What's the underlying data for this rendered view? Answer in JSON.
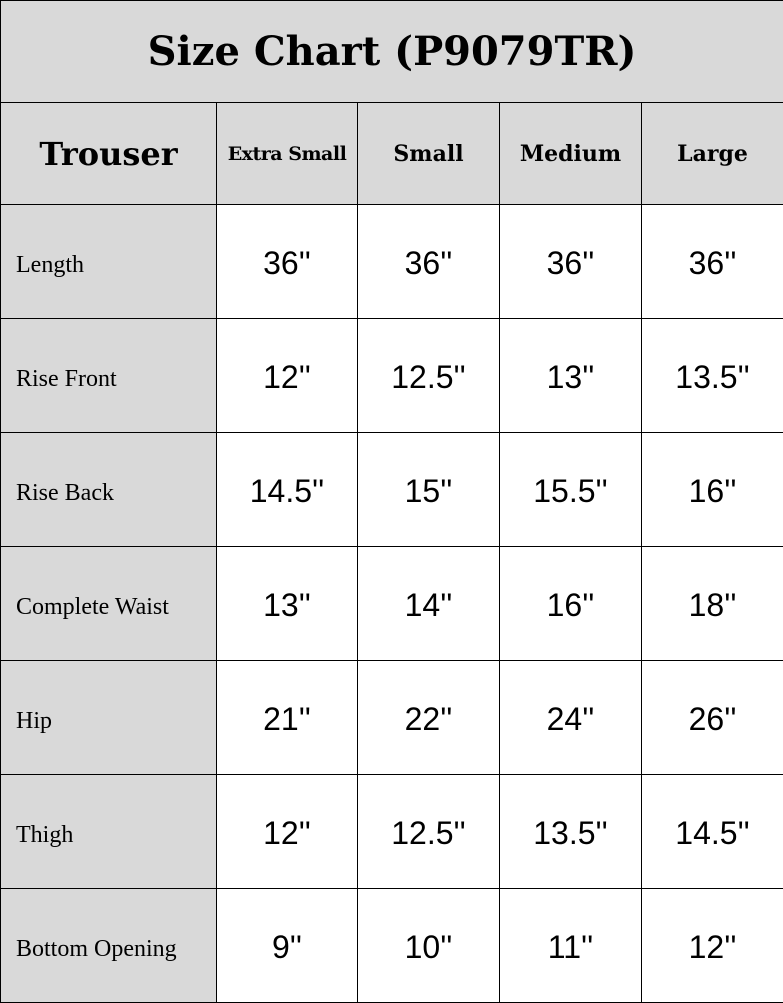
{
  "title": "Size Chart (P9079TR)",
  "header": {
    "category": "Trouser",
    "sizes": [
      "Extra Small",
      "Small",
      "Medium",
      "Large"
    ]
  },
  "rows": [
    {
      "label": "Length",
      "values": [
        "36''",
        "36''",
        "36''",
        "36''"
      ]
    },
    {
      "label": "Rise Front",
      "values": [
        "12''",
        "12.5''",
        "13''",
        "13.5''"
      ]
    },
    {
      "label": "Rise Back",
      "values": [
        "14.5''",
        "15''",
        "15.5''",
        "16''"
      ]
    },
    {
      "label": "Complete Waist",
      "values": [
        "13''",
        "14''",
        "16''",
        "18''"
      ]
    },
    {
      "label": "Hip",
      "values": [
        "21''",
        "22''",
        "24''",
        "26''"
      ]
    },
    {
      "label": "Thigh",
      "values": [
        "12''",
        "12.5''",
        "13.5''",
        "14.5''"
      ]
    },
    {
      "label": "Bottom Opening",
      "values": [
        "9''",
        "10''",
        "11''",
        "12''"
      ]
    }
  ],
  "colors": {
    "header_background": "#d9d9d9",
    "cell_background": "#ffffff",
    "border": "#000000"
  }
}
